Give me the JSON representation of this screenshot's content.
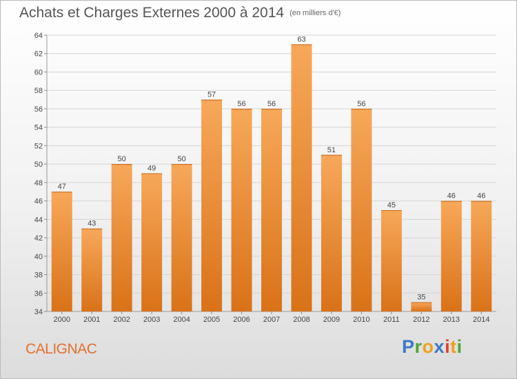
{
  "header": {
    "title": "Achats et Charges Externes 2000 à 2014",
    "subtitle": "(en milliers d'€)"
  },
  "footer": {
    "commune": "CALIGNAC",
    "logo_text": "Proxiti"
  },
  "colors": {
    "bar_top": "#f7a85a",
    "bar_bottom": "#d97218",
    "commune": "#e46f2c",
    "grid": "#d4d4d4"
  },
  "chart_data": {
    "type": "bar",
    "title": "Achats et Charges Externes 2000 à 2014",
    "subtitle": "(en milliers d'€)",
    "xlabel": "",
    "ylabel": "",
    "categories": [
      "2000",
      "2001",
      "2002",
      "2003",
      "2004",
      "2005",
      "2006",
      "2007",
      "2008",
      "2009",
      "2010",
      "2011",
      "2012",
      "2013",
      "2014"
    ],
    "values": [
      47,
      43,
      50,
      49,
      50,
      57,
      56,
      56,
      63,
      51,
      56,
      45,
      35,
      46,
      46
    ],
    "ylim": [
      34,
      64
    ],
    "yticks": [
      34,
      36,
      38,
      40,
      42,
      44,
      46,
      48,
      50,
      52,
      54,
      56,
      58,
      60,
      62,
      64
    ],
    "grid": true,
    "data_labels": true
  }
}
